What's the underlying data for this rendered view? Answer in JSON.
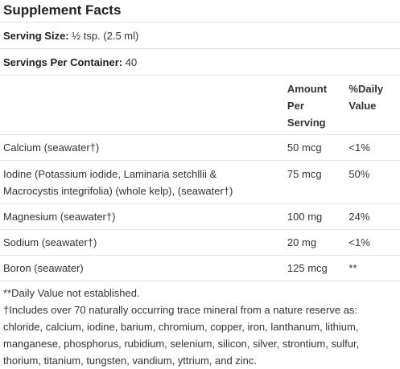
{
  "title": "Supplement Facts",
  "serving_size": {
    "label": "Serving Size:",
    "value": "½ tsp. (2.5 ml)"
  },
  "servings_per_container": {
    "label": "Servings Per Container:",
    "value": "40"
  },
  "table": {
    "headers": {
      "amount_line1": "Amount",
      "amount_line2": "Per",
      "amount_line3": "Serving",
      "dv_line1": "%Daily",
      "dv_line2": "Value"
    },
    "rows": [
      {
        "name": "Calcium (seawater†)",
        "amount": "50 mcg",
        "dv": "<1%"
      },
      {
        "name_line1": "Iodine (Potassium iodide, Laminaria setchllii &",
        "name_line2": "Macrocystis integrifolia) (whole kelp), (seawater†)",
        "amount": "75 mcg",
        "dv": "50%"
      },
      {
        "name": "Magnesium (seawater†)",
        "amount": "100 mg",
        "dv": "24%"
      },
      {
        "name": "Sodium (seawater†)",
        "amount": "20 mg",
        "dv": "<1%"
      },
      {
        "name": "Boron (seawater)",
        "amount": "125 mcg",
        "dv": "**"
      }
    ]
  },
  "footnotes": {
    "daily_value": "**Daily Value not established.",
    "trace_line1": "†Includes over 70 naturally occurring trace mineral from a nature reserve as:",
    "trace_line2": "chloride, calcium, iodine, barium, chromium, copper, iron, lanthanum, lithium,",
    "trace_line3": "manganese, phosphorus, rubidium, selenium, silicon, silver, strontium, sulfur,",
    "trace_line4": "thorium, titanium, tungsten, vandium, yttrium, and zinc."
  }
}
